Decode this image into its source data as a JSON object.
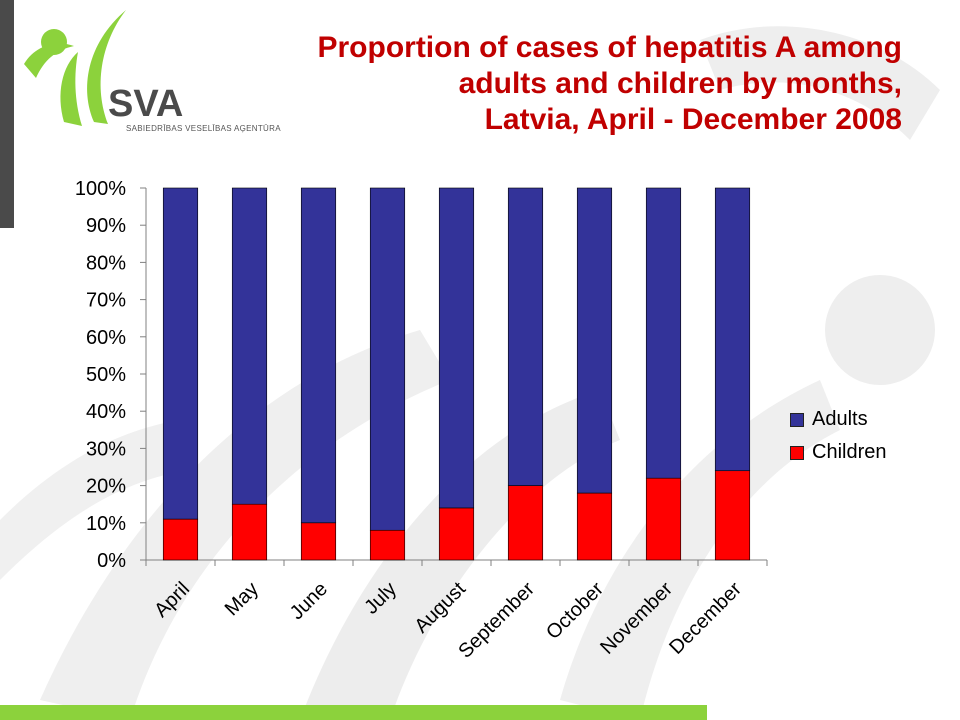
{
  "logo": {
    "brand": "SVA",
    "subtitle": "SABIEDRĪBAS VESELĪBAS AĢENTŪRA"
  },
  "title_lines": [
    "Proportion of cases of hepatitis A among",
    "adults and children by months,",
    "Latvia, April - December 2008"
  ],
  "colors": {
    "adults": "#333399",
    "children": "#ff0000",
    "title": "#c00000",
    "accent_bar": "#8cd23c"
  },
  "chart_data": {
    "type": "bar",
    "stacked": true,
    "categories": [
      "April",
      "May",
      "June",
      "July",
      "August",
      "September",
      "October",
      "November",
      "December"
    ],
    "series": [
      {
        "name": "Children",
        "values": [
          11,
          15,
          10,
          8,
          14,
          20,
          18,
          22,
          24
        ]
      },
      {
        "name": "Adults",
        "values": [
          89,
          85,
          90,
          92,
          86,
          80,
          82,
          78,
          76
        ]
      }
    ],
    "ylim": [
      0,
      100
    ],
    "yticks": [
      "0%",
      "10%",
      "20%",
      "30%",
      "40%",
      "50%",
      "60%",
      "70%",
      "80%",
      "90%",
      "100%"
    ],
    "legend": [
      "Adults",
      "Children"
    ],
    "legend_position": "right",
    "grid": false
  }
}
